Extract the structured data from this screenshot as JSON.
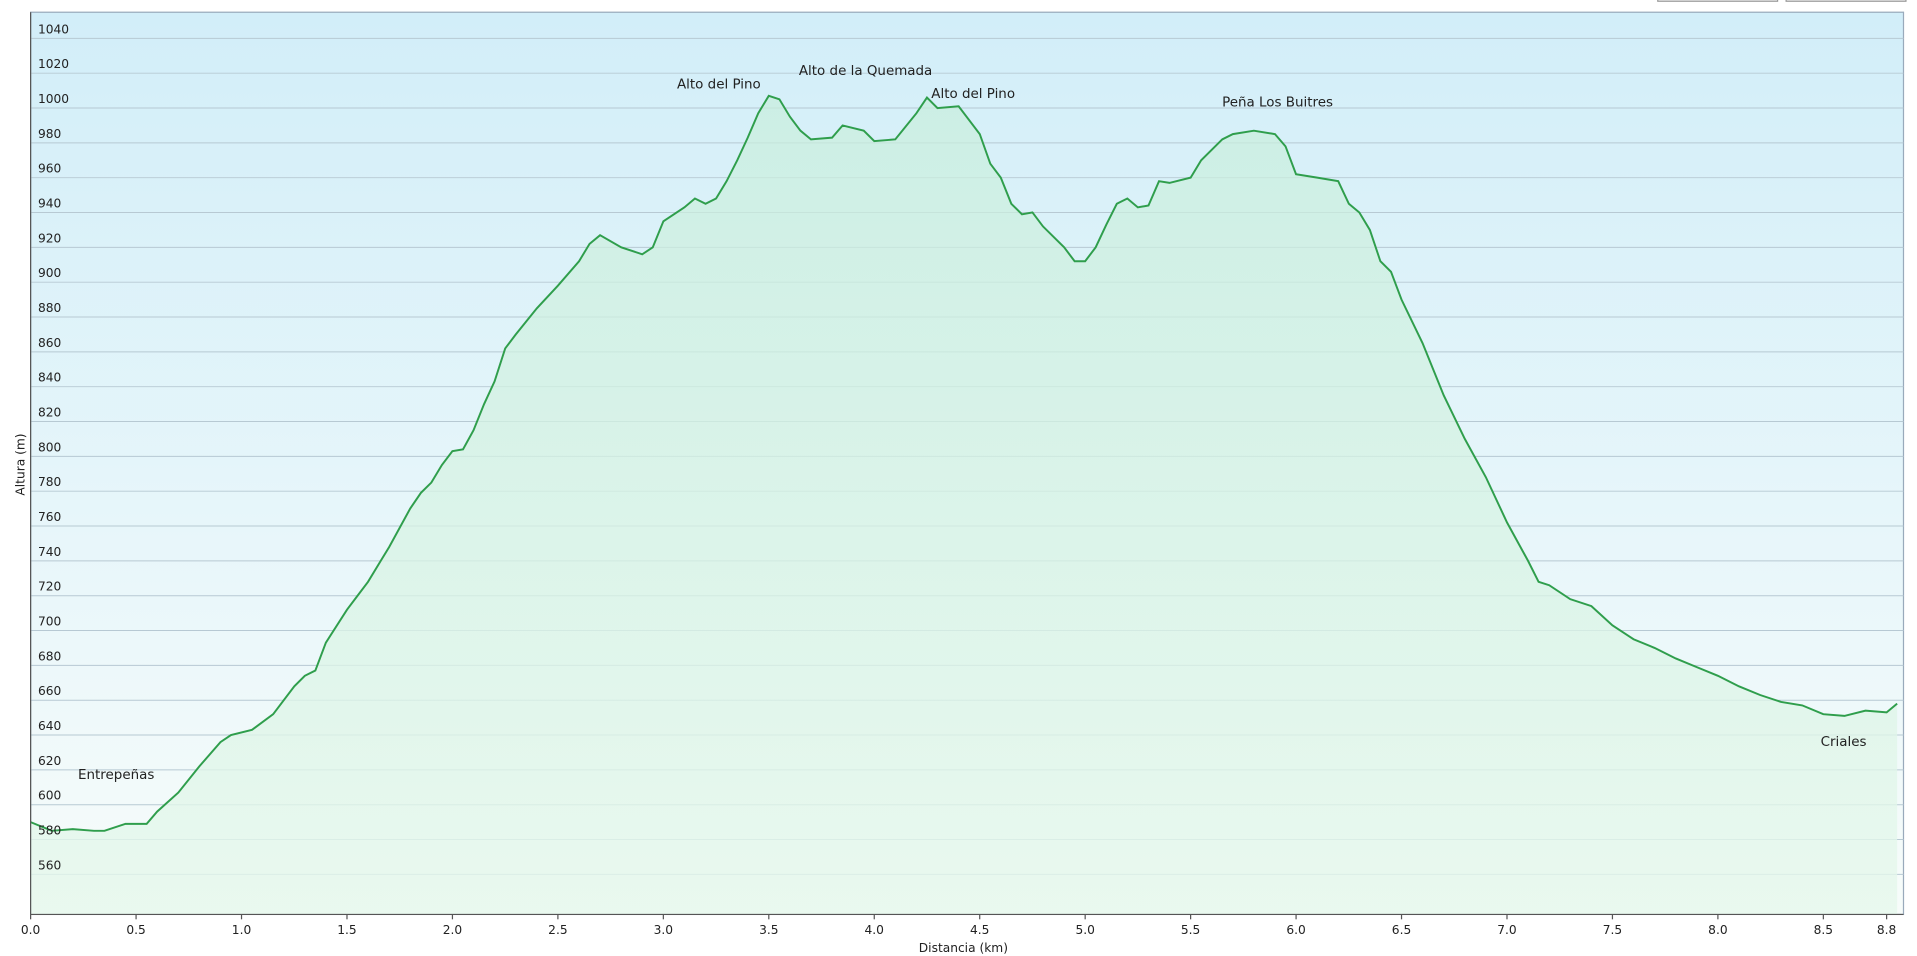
{
  "chart_data": {
    "type": "line",
    "x_label": "Distancia  (km)",
    "y_label": "Altura (m)",
    "color": "#2f9e4c",
    "grid": true,
    "fill": true,
    "x": [
      0.0,
      0.1,
      0.2,
      0.3,
      0.35,
      0.45,
      0.55,
      0.6,
      0.7,
      0.8,
      0.9,
      0.95,
      1.05,
      1.15,
      1.25,
      1.3,
      1.35,
      1.4,
      1.5,
      1.55,
      1.6,
      1.7,
      1.8,
      1.85,
      1.9,
      1.95,
      2.0,
      2.05,
      2.1,
      2.15,
      2.2,
      2.25,
      2.3,
      2.4,
      2.5,
      2.6,
      2.65,
      2.7,
      2.8,
      2.9,
      2.95,
      3.0,
      3.1,
      3.15,
      3.2,
      3.25,
      3.3,
      3.35,
      3.4,
      3.45,
      3.5,
      3.55,
      3.6,
      3.65,
      3.7,
      3.8,
      3.85,
      3.95,
      4.0,
      4.1,
      4.2,
      4.25,
      4.3,
      4.4,
      4.5,
      4.55,
      4.6,
      4.65,
      4.7,
      4.75,
      4.8,
      4.9,
      4.95,
      5.0,
      5.05,
      5.1,
      5.15,
      5.2,
      5.25,
      5.3,
      5.35,
      5.4,
      5.5,
      5.55,
      5.65,
      5.7,
      5.8,
      5.9,
      5.95,
      6.0,
      6.1,
      6.2,
      6.25,
      6.3,
      6.35,
      6.4,
      6.45,
      6.5,
      6.6,
      6.7,
      6.8,
      6.9,
      7.0,
      7.1,
      7.15,
      7.2,
      7.3,
      7.4,
      7.5,
      7.6,
      7.7,
      7.8,
      7.9,
      8.0,
      8.1,
      8.2,
      8.3,
      8.4,
      8.5,
      8.6,
      8.7,
      8.8,
      8.85
    ],
    "values": [
      590,
      585,
      586,
      585,
      585,
      589,
      589,
      596,
      607,
      622,
      636,
      640,
      643,
      652,
      668,
      674,
      677,
      693,
      712,
      720,
      728,
      748,
      770,
      779,
      785,
      795,
      803,
      804,
      815,
      830,
      843,
      862,
      870,
      885,
      898,
      912,
      922,
      927,
      920,
      916,
      920,
      935,
      943,
      948,
      945,
      948,
      958,
      970,
      983,
      997,
      1007,
      1005,
      995,
      987,
      982,
      983,
      990,
      987,
      981,
      982,
      997,
      1006,
      1000,
      1001,
      985,
      968,
      960,
      945,
      939,
      940,
      932,
      920,
      912,
      912,
      920,
      933,
      945,
      948,
      943,
      944,
      958,
      957,
      960,
      970,
      982,
      985,
      987,
      985,
      978,
      962,
      960,
      958,
      945,
      940,
      930,
      912,
      906,
      890,
      865,
      835,
      810,
      788,
      762,
      740,
      728,
      726,
      718,
      714,
      703,
      695,
      690,
      684,
      679,
      674,
      668,
      663,
      659,
      657,
      652,
      651,
      654,
      653,
      658
    ],
    "xlim": [
      0,
      8.88
    ],
    "ylim": [
      537,
      1055
    ],
    "xticks": [
      {
        "value": 0,
        "label": "0.0"
      },
      0.5,
      {
        "value": 1,
        "label": "1.0"
      },
      1.5,
      {
        "value": 2,
        "label": "2.0"
      },
      2.5,
      {
        "value": 3,
        "label": "3.0"
      },
      3.5,
      {
        "value": 4,
        "label": "4.0"
      },
      4.5,
      {
        "value": 5,
        "label": "5.0"
      },
      5.5,
      {
        "value": 6,
        "label": "6.0"
      },
      6.5,
      {
        "value": 7,
        "label": "7.0"
      },
      7.5,
      {
        "value": 8,
        "label": "8.0"
      },
      8.5,
      8.8
    ],
    "yticks": [
      560,
      580,
      600,
      620,
      640,
      660,
      680,
      700,
      720,
      740,
      760,
      780,
      800,
      820,
      840,
      860,
      880,
      900,
      920,
      940,
      960,
      980,
      1000,
      1020,
      1040
    ],
    "annotations": [
      "Entrepeñas",
      "Alto del Pino",
      "Alto de la Quemada",
      "Alto del Pino",
      "Peña Los Buitres",
      "Criales"
    ]
  }
}
